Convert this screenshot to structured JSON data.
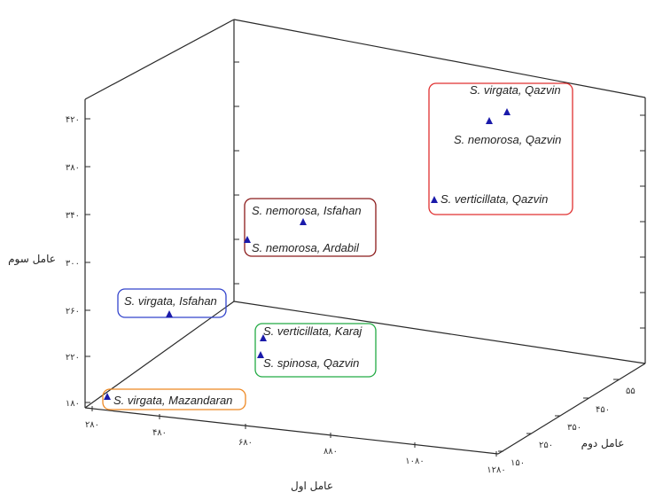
{
  "chart_data": {
    "type": "scatter",
    "title": "",
    "axes": {
      "x": {
        "label": "عامل اول",
        "ticks": [
          "۲۸۰",
          "۴۸۰",
          "۶۸۰",
          "۸۸۰",
          "۱۰۸۰",
          "۱۲۸۰"
        ]
      },
      "y": {
        "label": "عامل دوم",
        "ticks": [
          "۱۵۰",
          "۲۵۰",
          "۳۵۰",
          "۴۵۰",
          "۵۵"
        ]
      },
      "z": {
        "label": "عامل سوم",
        "ticks": [
          "۱۸۰",
          "۲۲۰",
          "۲۶۰",
          "۳۰۰",
          "۳۴۰",
          "۳۸۰",
          "۴۲۰"
        ]
      }
    },
    "points": [
      {
        "label": "S. virgata, Qazvin"
      },
      {
        "label": "S. nemorosa, Qazvin"
      },
      {
        "label": "S. verticillata, Qazvin"
      },
      {
        "label": "S. nemorosa, Isfahan"
      },
      {
        "label": "S. nemorosa, Ardabil"
      },
      {
        "label": "S. virgata, Isfahan"
      },
      {
        "label": "S. verticillata, Karaj"
      },
      {
        "label": "S. spinosa, Qazvin"
      },
      {
        "label": "S. virgata, Mazandaran"
      }
    ],
    "groups": [
      {
        "members": [
          0,
          1,
          2
        ],
        "color": "#e03030"
      },
      {
        "members": [
          3,
          4
        ],
        "color": "#8b1a1a"
      },
      {
        "members": [
          5
        ],
        "color": "#3344cc"
      },
      {
        "members": [
          6,
          7
        ],
        "color": "#22aa44"
      },
      {
        "members": [
          8
        ],
        "color": "#ee8822"
      }
    ],
    "marker_color": "#1a1aaa"
  }
}
